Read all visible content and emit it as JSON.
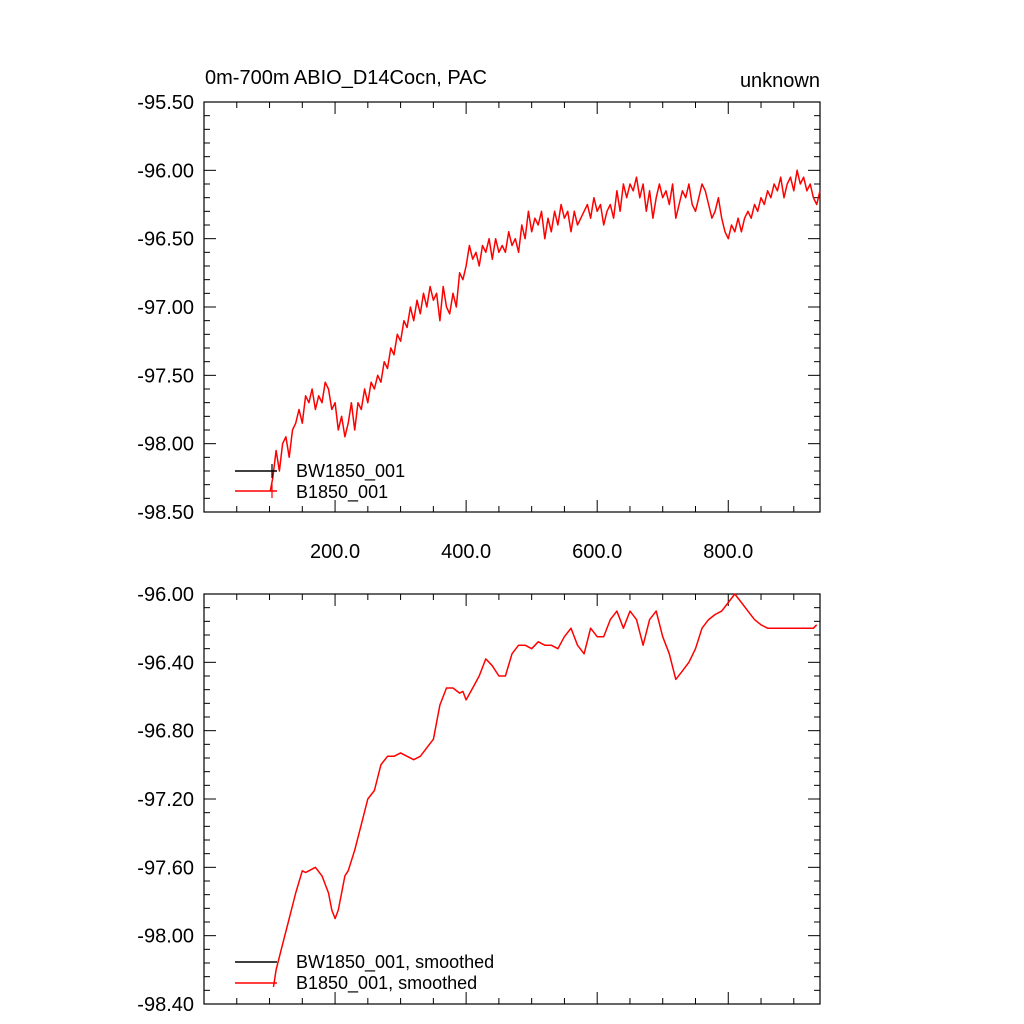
{
  "chart_data": [
    {
      "type": "line",
      "title": "0m-700m ABIO_D14Cocn, PAC",
      "title_right": "unknown",
      "xlabel": "",
      "ylabel": "",
      "xlim": [
        0,
        940
      ],
      "ylim": [
        -98.5,
        -95.5
      ],
      "x_ticks": [
        200,
        400,
        600,
        800
      ],
      "x_tick_labels": [
        "200.0",
        "400.0",
        "600.0",
        "800.0"
      ],
      "y_ticks": [
        -95.5,
        -96.0,
        -96.5,
        -97.0,
        -97.5,
        -98.0,
        -98.5
      ],
      "y_tick_labels": [
        "-95.50",
        "-96.00",
        "-96.50",
        "-97.00",
        "-97.50",
        "-98.00",
        "-98.50"
      ],
      "legend_position": "bottom-left",
      "legend": [
        "BW1850_001",
        "B1850_001"
      ],
      "series": [
        {
          "name": "BW1850_001",
          "color": "#000000",
          "x": [],
          "y": []
        },
        {
          "name": "B1850_001",
          "color": "#ff0000",
          "x": [
            101,
            105,
            110,
            115,
            120,
            125,
            130,
            135,
            140,
            145,
            150,
            155,
            160,
            165,
            170,
            175,
            180,
            185,
            190,
            195,
            200,
            205,
            210,
            215,
            220,
            225,
            230,
            235,
            240,
            245,
            250,
            255,
            260,
            265,
            270,
            275,
            280,
            285,
            290,
            295,
            300,
            305,
            310,
            315,
            320,
            325,
            330,
            335,
            340,
            345,
            350,
            355,
            360,
            365,
            370,
            375,
            380,
            385,
            390,
            395,
            400,
            405,
            410,
            415,
            420,
            425,
            430,
            435,
            440,
            445,
            450,
            455,
            460,
            465,
            470,
            475,
            480,
            485,
            490,
            495,
            500,
            505,
            510,
            515,
            520,
            525,
            530,
            535,
            540,
            545,
            550,
            555,
            560,
            565,
            570,
            575,
            580,
            585,
            590,
            595,
            600,
            605,
            610,
            615,
            620,
            625,
            630,
            635,
            640,
            645,
            650,
            655,
            660,
            665,
            670,
            675,
            680,
            685,
            690,
            695,
            700,
            705,
            710,
            715,
            720,
            725,
            730,
            735,
            740,
            745,
            750,
            755,
            760,
            765,
            770,
            775,
            780,
            785,
            790,
            795,
            800,
            805,
            810,
            815,
            820,
            825,
            830,
            835,
            840,
            845,
            850,
            855,
            860,
            865,
            870,
            875,
            880,
            885,
            890,
            895,
            900,
            905,
            910,
            915,
            920,
            925,
            930,
            935,
            940
          ],
          "y": [
            -98.35,
            -98.25,
            -98.05,
            -98.2,
            -98.0,
            -97.95,
            -98.1,
            -97.9,
            -97.85,
            -97.75,
            -97.85,
            -97.65,
            -97.7,
            -97.6,
            -97.75,
            -97.65,
            -97.7,
            -97.55,
            -97.6,
            -97.75,
            -97.7,
            -97.9,
            -97.8,
            -97.95,
            -97.85,
            -97.7,
            -97.9,
            -97.7,
            -97.75,
            -97.6,
            -97.7,
            -97.55,
            -97.6,
            -97.5,
            -97.55,
            -97.4,
            -97.45,
            -97.3,
            -97.35,
            -97.2,
            -97.25,
            -97.1,
            -97.15,
            -97.0,
            -97.1,
            -96.95,
            -97.05,
            -96.9,
            -97.0,
            -96.85,
            -96.95,
            -96.9,
            -97.1,
            -96.85,
            -97.0,
            -97.05,
            -96.9,
            -97.0,
            -96.75,
            -96.8,
            -96.7,
            -96.55,
            -96.65,
            -96.6,
            -96.7,
            -96.55,
            -96.6,
            -96.5,
            -96.65,
            -96.5,
            -96.6,
            -96.55,
            -96.6,
            -96.45,
            -96.55,
            -96.5,
            -96.6,
            -96.4,
            -96.5,
            -96.3,
            -96.45,
            -96.35,
            -96.4,
            -96.3,
            -96.5,
            -96.35,
            -96.45,
            -96.3,
            -96.4,
            -96.25,
            -96.35,
            -96.3,
            -96.45,
            -96.3,
            -96.4,
            -96.35,
            -96.3,
            -96.25,
            -96.35,
            -96.2,
            -96.3,
            -96.25,
            -96.4,
            -96.3,
            -96.25,
            -96.35,
            -96.15,
            -96.3,
            -96.1,
            -96.2,
            -96.1,
            -96.15,
            -96.05,
            -96.2,
            -96.1,
            -96.3,
            -96.15,
            -96.35,
            -96.2,
            -96.1,
            -96.2,
            -96.15,
            -96.25,
            -96.1,
            -96.35,
            -96.25,
            -96.15,
            -96.2,
            -96.1,
            -96.25,
            -96.3,
            -96.2,
            -96.1,
            -96.15,
            -96.25,
            -96.35,
            -96.3,
            -96.2,
            -96.35,
            -96.45,
            -96.5,
            -96.4,
            -96.45,
            -96.35,
            -96.45,
            -96.35,
            -96.3,
            -96.35,
            -96.25,
            -96.3,
            -96.2,
            -96.25,
            -96.15,
            -96.2,
            -96.1,
            -96.15,
            -96.05,
            -96.2,
            -96.1,
            -96.05,
            -96.15,
            -96.0,
            -96.1,
            -96.05,
            -96.15,
            -96.1,
            -96.2,
            -96.25,
            -96.15
          ]
        }
      ]
    },
    {
      "type": "line",
      "title": "",
      "xlabel": "",
      "ylabel": "",
      "xlim": [
        0,
        940
      ],
      "ylim": [
        -98.4,
        -96.0
      ],
      "y_ticks": [
        -96.0,
        -96.4,
        -96.8,
        -97.2,
        -97.6,
        -98.0,
        -98.4
      ],
      "y_tick_labels": [
        "-96.00",
        "-96.40",
        "-96.80",
        "-97.20",
        "-97.60",
        "-98.00",
        "-98.40"
      ],
      "legend_position": "bottom-left",
      "legend": [
        "BW1850_001, smoothed",
        "B1850_001, smoothed"
      ],
      "series": [
        {
          "name": "BW1850_001, smoothed",
          "color": "#000000",
          "x": [],
          "y": []
        },
        {
          "name": "B1850_001, smoothed",
          "color": "#ff0000",
          "x": [
            106,
            110,
            120,
            130,
            140,
            150,
            155,
            160,
            170,
            180,
            190,
            195,
            200,
            205,
            210,
            215,
            220,
            230,
            240,
            250,
            260,
            270,
            280,
            290,
            300,
            310,
            320,
            330,
            340,
            350,
            360,
            370,
            380,
            390,
            395,
            400,
            410,
            420,
            430,
            440,
            450,
            460,
            470,
            480,
            490,
            500,
            510,
            520,
            530,
            540,
            550,
            560,
            570,
            580,
            590,
            600,
            610,
            620,
            630,
            640,
            650,
            660,
            670,
            680,
            690,
            700,
            710,
            720,
            730,
            740,
            750,
            760,
            770,
            780,
            790,
            800,
            810,
            820,
            830,
            840,
            850,
            860,
            870,
            880,
            890,
            900,
            910,
            920,
            930,
            935
          ],
          "y": [
            -98.3,
            -98.2,
            -98.05,
            -97.9,
            -97.75,
            -97.62,
            -97.63,
            -97.62,
            -97.6,
            -97.65,
            -97.75,
            -97.85,
            -97.9,
            -97.85,
            -97.75,
            -97.65,
            -97.62,
            -97.5,
            -97.35,
            -97.2,
            -97.15,
            -97.0,
            -96.95,
            -96.95,
            -96.93,
            -96.95,
            -96.97,
            -96.95,
            -96.9,
            -96.85,
            -96.65,
            -96.55,
            -96.55,
            -96.58,
            -96.57,
            -96.62,
            -96.55,
            -96.48,
            -96.38,
            -96.42,
            -96.48,
            -96.48,
            -96.35,
            -96.3,
            -96.3,
            -96.32,
            -96.28,
            -96.3,
            -96.3,
            -96.32,
            -96.25,
            -96.2,
            -96.3,
            -96.35,
            -96.2,
            -96.25,
            -96.25,
            -96.15,
            -96.1,
            -96.2,
            -96.1,
            -96.15,
            -96.3,
            -96.15,
            -96.1,
            -96.25,
            -96.35,
            -96.5,
            -96.45,
            -96.4,
            -96.32,
            -96.2,
            -96.15,
            -96.12,
            -96.1,
            -96.05,
            -96.0,
            -96.05,
            -96.1,
            -96.15,
            -96.18,
            -96.2,
            -96.2,
            -96.2,
            -96.2,
            -96.2,
            -96.2,
            -96.2,
            -96.2,
            -96.18
          ]
        }
      ]
    }
  ]
}
